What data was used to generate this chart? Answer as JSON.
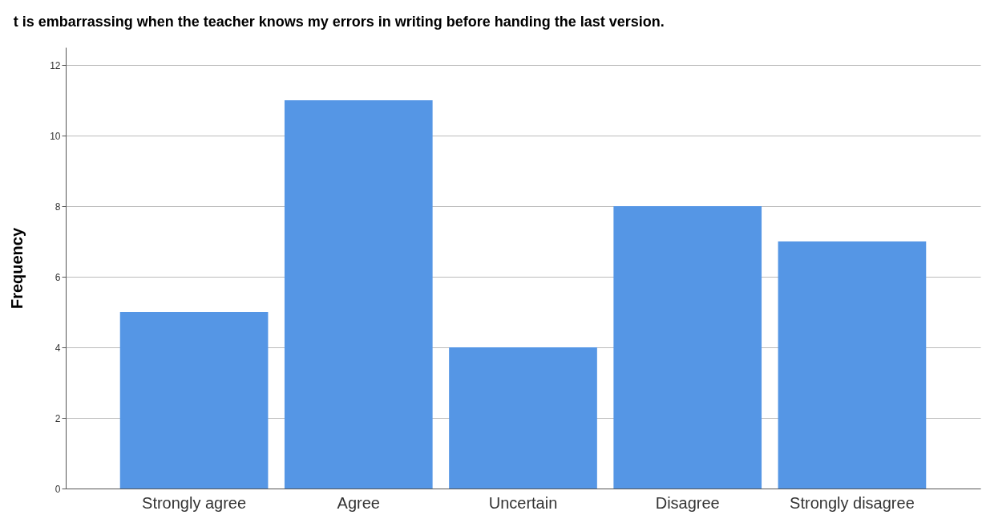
{
  "chart_data": {
    "type": "bar",
    "title": "t is embarrassing when the teacher knows my errors in writing before handing the last version.",
    "ylabel": "Frequency",
    "categories": [
      "Strongly agree",
      "Agree",
      "Uncertain",
      "Disagree",
      "Strongly disagree"
    ],
    "values": [
      5,
      11,
      4,
      8,
      7
    ],
    "color": "#5596e5",
    "ylim": [
      0,
      12.5
    ],
    "yticks": [
      0,
      2,
      4,
      6,
      8,
      10,
      12
    ],
    "grid": "y"
  }
}
